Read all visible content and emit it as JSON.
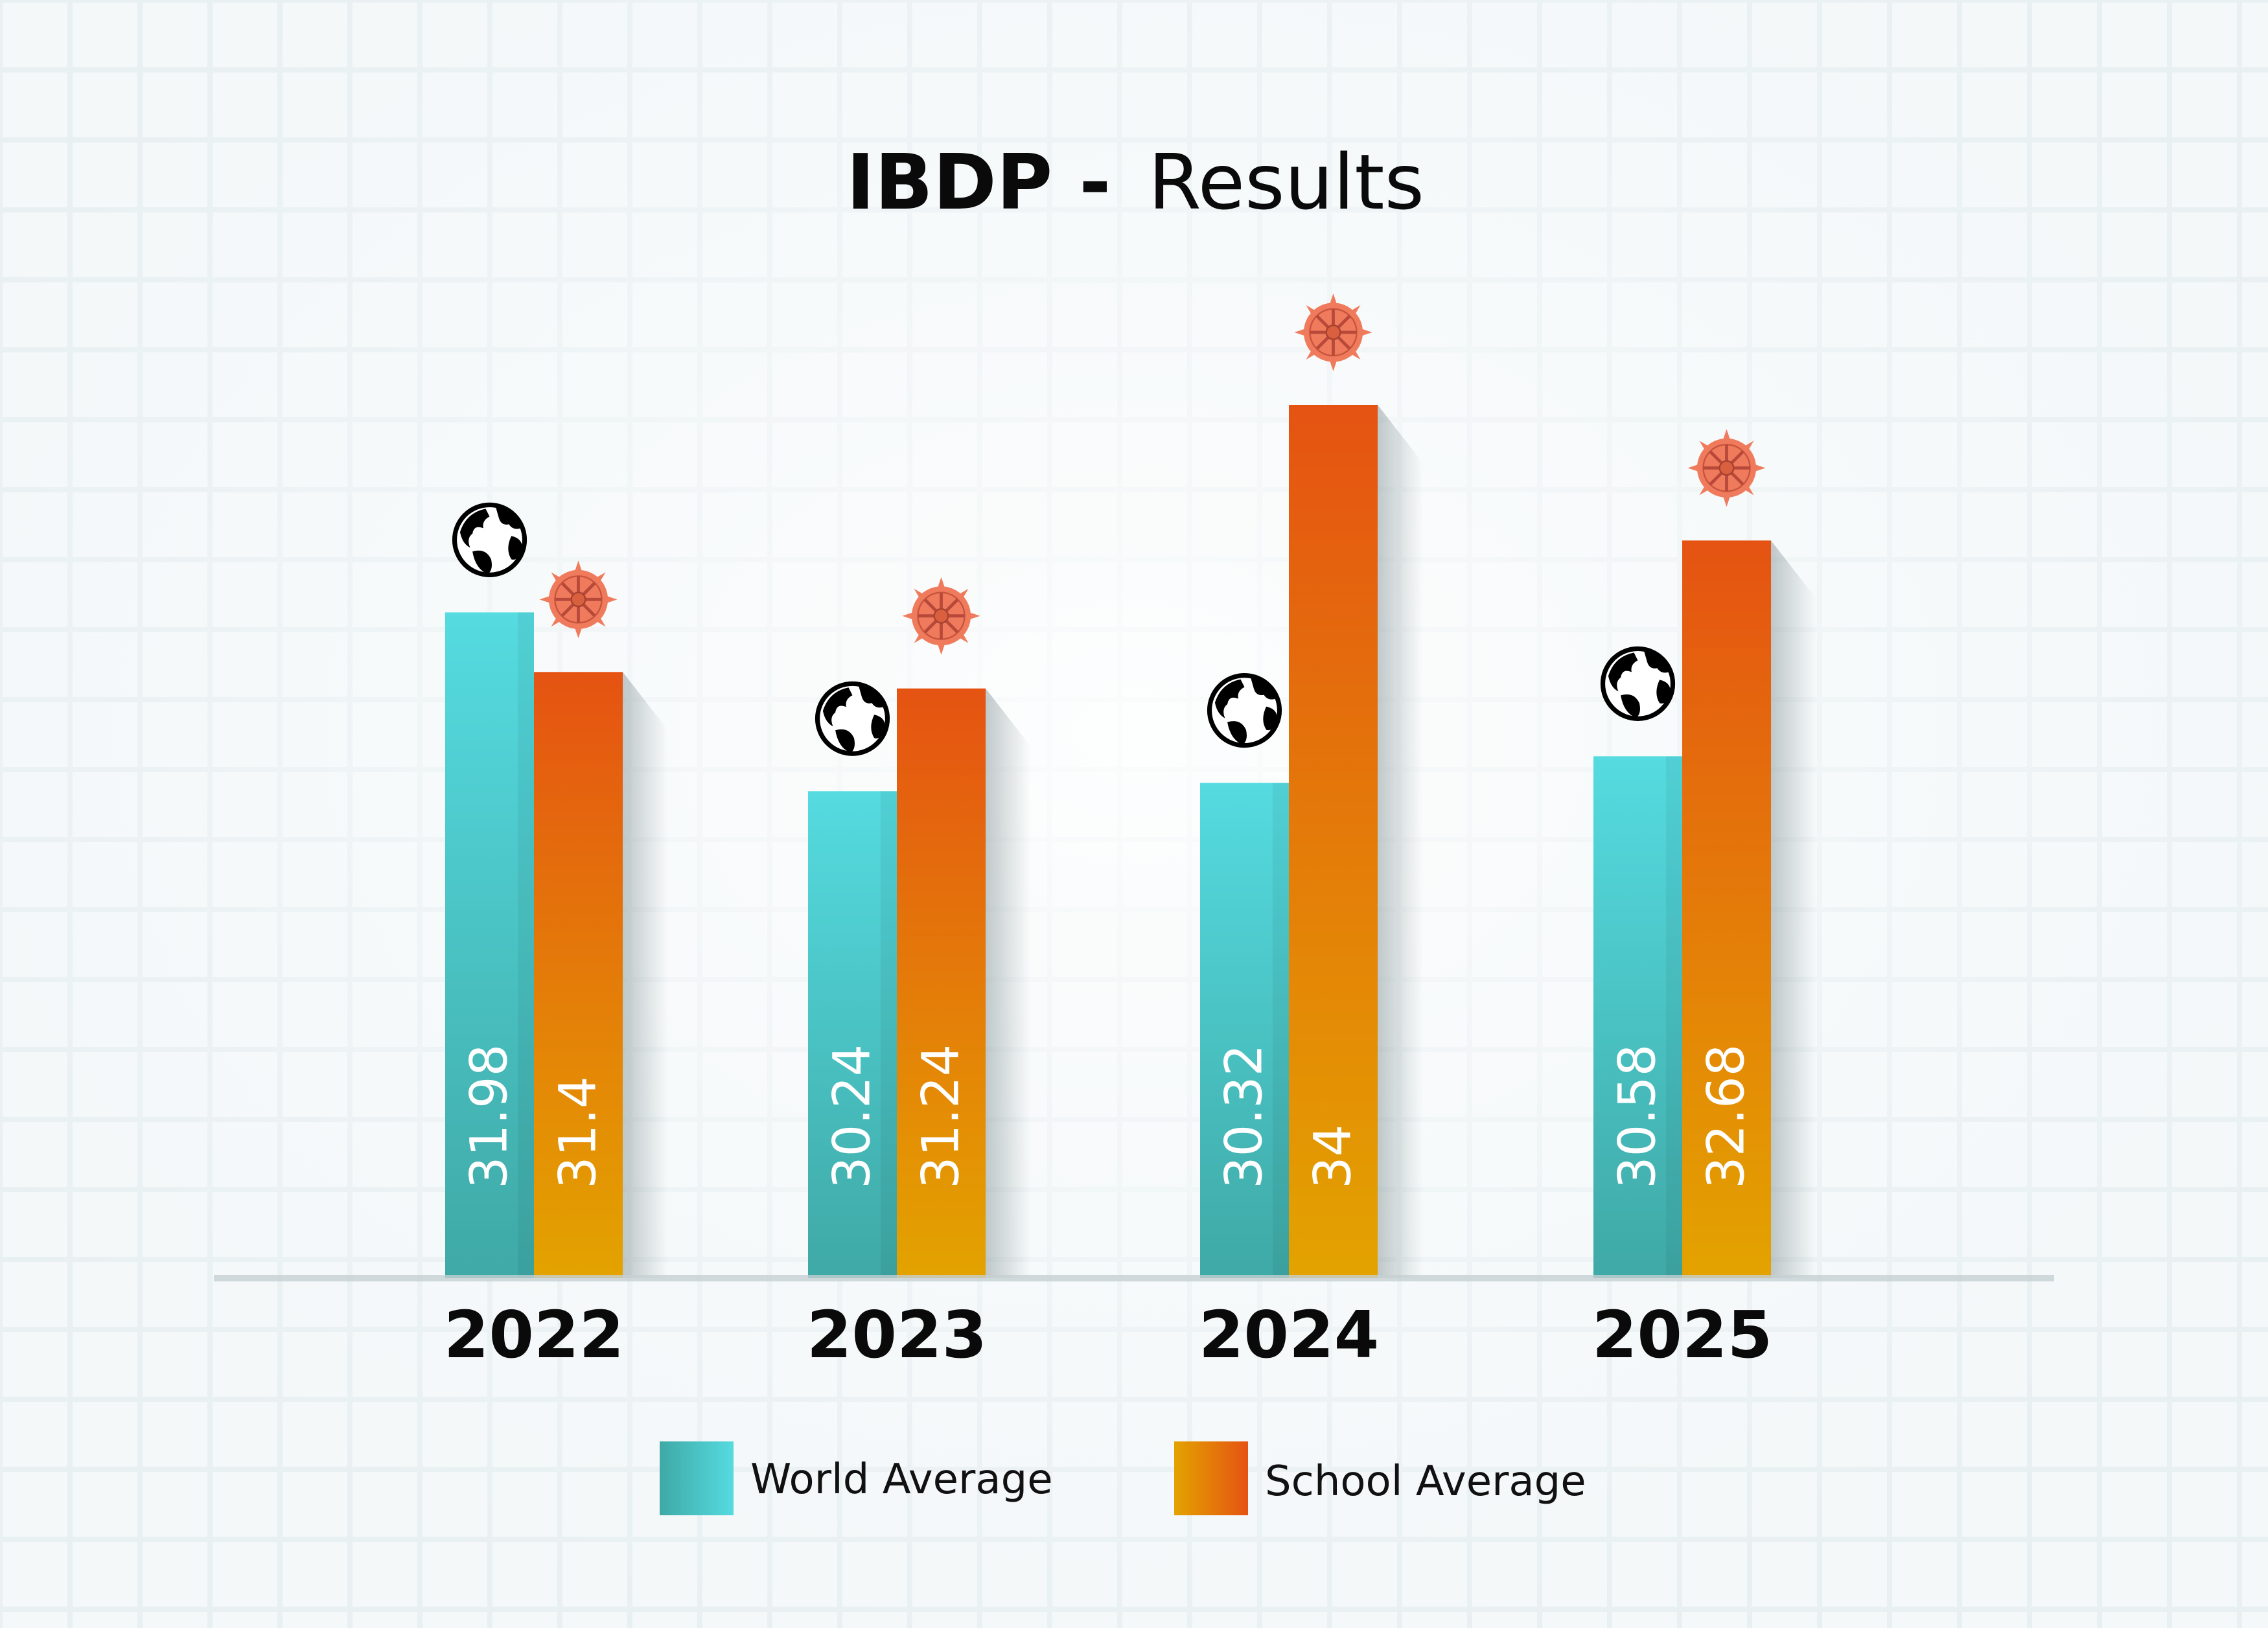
{
  "chart_data": {
    "type": "bar",
    "title_bold": "IBDP -",
    "title_regular": "Results",
    "categories": [
      "2022",
      "2023",
      "2024",
      "2025"
    ],
    "series": [
      {
        "name": "World Average",
        "values": [
          31.98,
          30.24,
          30.32,
          30.58
        ],
        "color_top": "#55dbe0",
        "color_bottom": "#3fa9a6",
        "icon": "globe-icon"
      },
      {
        "name": "School Average",
        "values": [
          31.4,
          31.24,
          34,
          32.68
        ],
        "color_top": "#e55312",
        "color_bottom": "#e3a300",
        "icon": "dharma-wheel-icon"
      }
    ],
    "value_labels": [
      [
        "31.98",
        "30.24",
        "30.32",
        "30.58"
      ],
      [
        "31.4",
        "31.24",
        "34",
        "32.68"
      ]
    ],
    "ylim": [
      25.5,
      34
    ],
    "xlabel": "",
    "ylabel": "",
    "grid": true,
    "legend_placement": "bottom-center"
  }
}
